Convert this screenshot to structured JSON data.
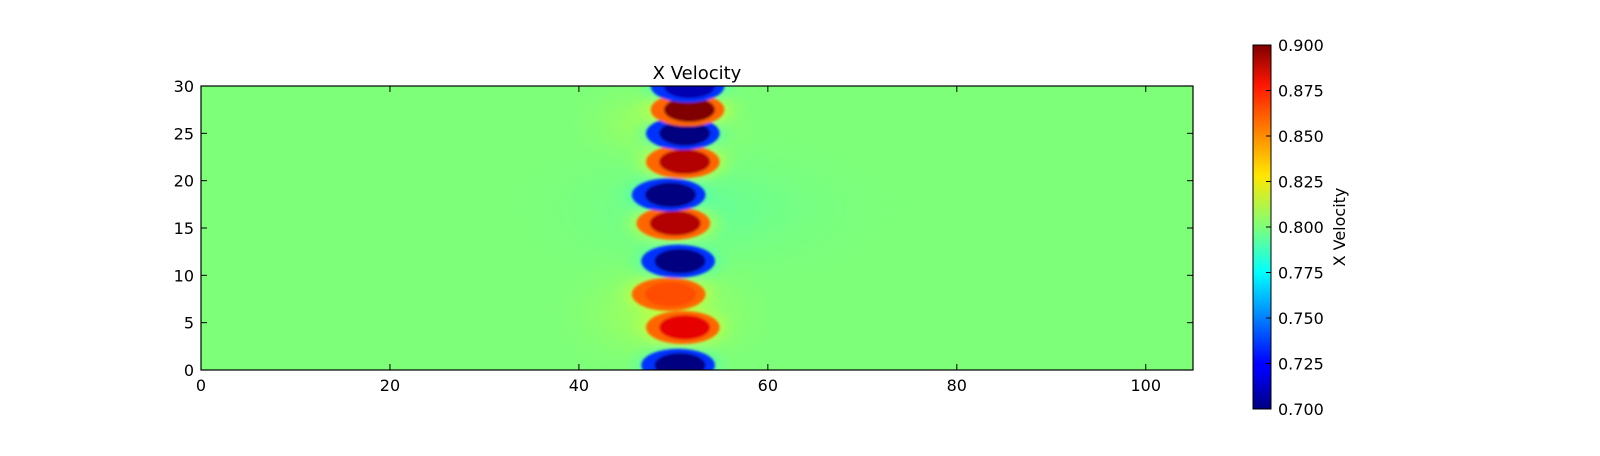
{
  "chart_data": {
    "type": "heatmap",
    "title": "X Velocity",
    "xlabel": "",
    "ylabel": "",
    "xlim": [
      0,
      105
    ],
    "ylim": [
      0,
      30
    ],
    "x_ticks": [
      "0",
      "20",
      "40",
      "60",
      "80",
      "100"
    ],
    "y_ticks": [
      "0",
      "5",
      "10",
      "15",
      "20",
      "25",
      "30"
    ],
    "grid": false,
    "colormap": "jet",
    "background_value": 0.8,
    "band_center_x": 51,
    "features": [
      {
        "x": 50.5,
        "y": 0.5,
        "value": 0.7
      },
      {
        "x": 51.0,
        "y": 4.5,
        "value": 0.88
      },
      {
        "x": 49.5,
        "y": 8.0,
        "value": 0.86
      },
      {
        "x": 50.5,
        "y": 11.5,
        "value": 0.7
      },
      {
        "x": 50.0,
        "y": 15.5,
        "value": 0.89
      },
      {
        "x": 49.5,
        "y": 18.5,
        "value": 0.7
      },
      {
        "x": 51.0,
        "y": 22.0,
        "value": 0.89
      },
      {
        "x": 51.0,
        "y": 25.0,
        "value": 0.7
      },
      {
        "x": 51.5,
        "y": 27.5,
        "value": 0.9
      },
      {
        "x": 51.5,
        "y": 30.0,
        "value": 0.71
      }
    ],
    "colorbar": {
      "label": "X Velocity",
      "range": [
        0.7,
        0.9
      ],
      "ticks": [
        "0.700",
        "0.725",
        "0.750",
        "0.775",
        "0.800",
        "0.825",
        "0.850",
        "0.875",
        "0.900"
      ]
    }
  }
}
